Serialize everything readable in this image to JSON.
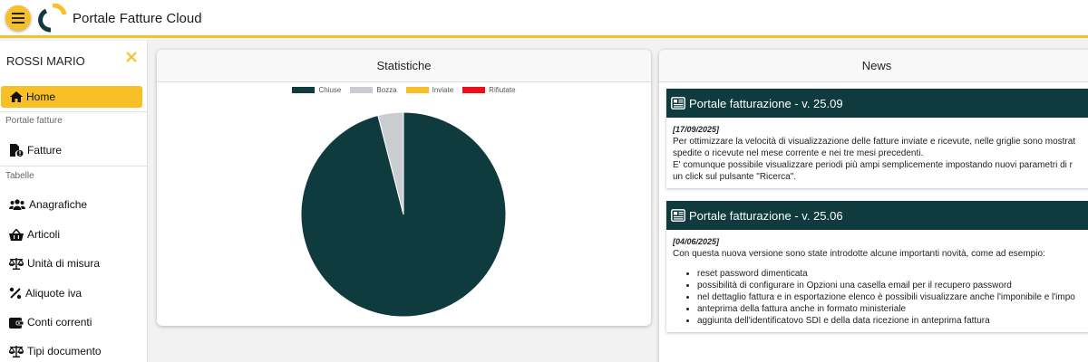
{
  "header": {
    "title": "Portale Fatture Cloud"
  },
  "sidebar": {
    "user": "ROSSI MARIO",
    "home_label": "Home",
    "section_fatture": "Portale fatture",
    "fatture_label": "Fatture",
    "section_tabelle": "Tabelle",
    "items": [
      {
        "label": "Anagrafiche",
        "icon": "users-icon"
      },
      {
        "label": "Articoli",
        "icon": "basket-icon"
      },
      {
        "label": "Unità di misura",
        "icon": "scale-icon"
      },
      {
        "label": "Aliquote iva",
        "icon": "percent-icon"
      },
      {
        "label": "Conti correnti",
        "icon": "wallet-icon"
      },
      {
        "label": "Tipi documento",
        "icon": "scale-icon"
      }
    ]
  },
  "stats": {
    "title": "Statistiche",
    "chart_data": {
      "type": "pie",
      "legend_position": "top",
      "series": [
        {
          "name": "Chiuse",
          "value": 96,
          "color": "#0f3b3e"
        },
        {
          "name": "Bozza",
          "value": 4,
          "color": "#c9cdd2"
        },
        {
          "name": "Inviate",
          "value": 0,
          "color": "#f6c026"
        },
        {
          "name": "Rifiutate",
          "value": 0,
          "color": "#e8111b"
        }
      ]
    }
  },
  "news": {
    "title": "News",
    "items": [
      {
        "title": "Portale fatturazione - v. 25.09",
        "date": "[17/09/2025]",
        "lines": [
          "Per ottimizzare la velocità di visualizzazione delle fatture inviate e ricevute, nelle griglie sono mostrat",
          "spedite o ricevute nel mese corrente e nei tre mesi precedenti.",
          "E' comunque possibile visualizzare periodi più ampi semplicemente impostando nuovi parametri di r",
          "un click sul pulsante \"Ricerca\"."
        ]
      },
      {
        "title": "Portale fatturazione - v. 25.06",
        "date": "[04/06/2025]",
        "intro": "Con questa nuova versione sono state introdotte alcune importanti novità, come ad esempio:",
        "bullets": [
          "reset password dimenticata",
          "possibilità di configurare in Opzioni una casella email per il recupero password",
          "nel dettaglio fattura e in esportazione elenco è possibili visualizzare anche l'imponibile e l'impo",
          "anteprima della fattura anche in formato ministeriale",
          "aggiunta dell'identificatovo SDI e della data ricezione in anteprima fattura"
        ]
      }
    ]
  }
}
